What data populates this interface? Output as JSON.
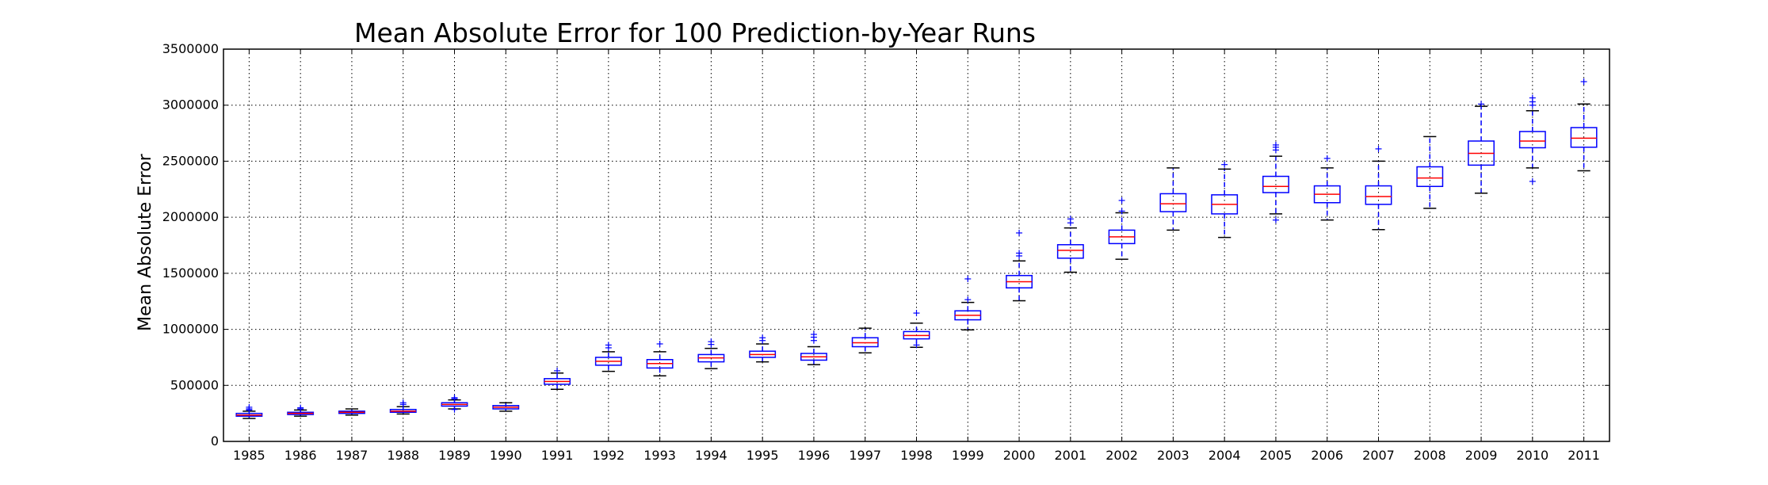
{
  "chart_data": {
    "type": "boxplot",
    "title": "Mean Absolute Error for 100 Prediction-by-Year Runs",
    "xlabel": "",
    "ylabel": "Mean Absolute Error",
    "ylim": [
      0,
      3500000
    ],
    "yticks": [
      0,
      500000,
      1000000,
      1500000,
      2000000,
      2500000,
      3000000,
      3500000
    ],
    "grid": true,
    "colors": {
      "box": "#0000ff",
      "median": "#ff0000",
      "cap": "#000000",
      "outlier": "#0000ff"
    },
    "categories": [
      "1985",
      "1986",
      "1987",
      "1988",
      "1989",
      "1990",
      "1991",
      "1992",
      "1993",
      "1994",
      "1995",
      "1996",
      "1997",
      "1998",
      "1999",
      "2000",
      "2001",
      "2002",
      "2003",
      "2004",
      "2005",
      "2006",
      "2007",
      "2008",
      "2009",
      "2010",
      "2011"
    ],
    "boxes": [
      {
        "min": 205000,
        "q1": 225000,
        "median": 235000,
        "q3": 250000,
        "max": 270000,
        "outliers": [
          280000,
          290000,
          305000
        ]
      },
      {
        "min": 225000,
        "q1": 240000,
        "median": 250000,
        "q3": 260000,
        "max": 280000,
        "outliers": [
          290000,
          300000
        ]
      },
      {
        "min": 235000,
        "q1": 250000,
        "median": 260000,
        "q3": 270000,
        "max": 290000,
        "outliers": []
      },
      {
        "min": 245000,
        "q1": 260000,
        "median": 270000,
        "q3": 285000,
        "max": 310000,
        "outliers": [
          330000,
          345000
        ]
      },
      {
        "min": 290000,
        "q1": 315000,
        "median": 330000,
        "q3": 345000,
        "max": 370000,
        "outliers": [
          285000,
          380000,
          390000
        ]
      },
      {
        "min": 270000,
        "q1": 290000,
        "median": 305000,
        "q3": 320000,
        "max": 345000,
        "outliers": []
      },
      {
        "min": 465000,
        "q1": 510000,
        "median": 535000,
        "q3": 560000,
        "max": 610000,
        "outliers": [
          630000
        ]
      },
      {
        "min": 625000,
        "q1": 680000,
        "median": 715000,
        "q3": 750000,
        "max": 800000,
        "outliers": [
          835000,
          860000
        ]
      },
      {
        "min": 585000,
        "q1": 655000,
        "median": 695000,
        "q3": 730000,
        "max": 800000,
        "outliers": [
          870000
        ]
      },
      {
        "min": 650000,
        "q1": 710000,
        "median": 745000,
        "q3": 775000,
        "max": 830000,
        "outliers": [
          865000,
          890000
        ]
      },
      {
        "min": 710000,
        "q1": 750000,
        "median": 775000,
        "q3": 805000,
        "max": 870000,
        "outliers": [
          900000,
          925000
        ]
      },
      {
        "min": 685000,
        "q1": 725000,
        "median": 755000,
        "q3": 785000,
        "max": 845000,
        "outliers": [
          900000,
          930000,
          955000
        ]
      },
      {
        "min": 790000,
        "q1": 845000,
        "median": 880000,
        "q3": 925000,
        "max": 1010000,
        "outliers": []
      },
      {
        "min": 840000,
        "q1": 915000,
        "median": 945000,
        "q3": 980000,
        "max": 1055000,
        "outliers": [
          860000,
          1145000
        ]
      },
      {
        "min": 995000,
        "q1": 1085000,
        "median": 1125000,
        "q3": 1165000,
        "max": 1240000,
        "outliers": [
          1265000,
          1450000
        ]
      },
      {
        "min": 1255000,
        "q1": 1370000,
        "median": 1425000,
        "q3": 1480000,
        "max": 1610000,
        "outliers": [
          1655000,
          1680000,
          1860000
        ]
      },
      {
        "min": 1510000,
        "q1": 1635000,
        "median": 1705000,
        "q3": 1755000,
        "max": 1905000,
        "outliers": [
          1950000,
          1985000
        ]
      },
      {
        "min": 1625000,
        "q1": 1765000,
        "median": 1825000,
        "q3": 1885000,
        "max": 2040000,
        "outliers": [
          2055000,
          2150000
        ]
      },
      {
        "min": 1885000,
        "q1": 2050000,
        "median": 2120000,
        "q3": 2210000,
        "max": 2440000,
        "outliers": []
      },
      {
        "min": 1820000,
        "q1": 2030000,
        "median": 2115000,
        "q3": 2200000,
        "max": 2430000,
        "outliers": [
          2470000
        ]
      },
      {
        "min": 2030000,
        "q1": 2220000,
        "median": 2275000,
        "q3": 2365000,
        "max": 2545000,
        "outliers": [
          1975000,
          2600000,
          2625000,
          2645000
        ]
      },
      {
        "min": 1975000,
        "q1": 2130000,
        "median": 2205000,
        "q3": 2280000,
        "max": 2440000,
        "outliers": [
          2525000
        ]
      },
      {
        "min": 1890000,
        "q1": 2115000,
        "median": 2185000,
        "q3": 2280000,
        "max": 2500000,
        "outliers": [
          2610000
        ]
      },
      {
        "min": 2080000,
        "q1": 2275000,
        "median": 2350000,
        "q3": 2450000,
        "max": 2720000,
        "outliers": []
      },
      {
        "min": 2215000,
        "q1": 2465000,
        "median": 2570000,
        "q3": 2680000,
        "max": 2990000,
        "outliers": [
          3010000
        ]
      },
      {
        "min": 2440000,
        "q1": 2620000,
        "median": 2680000,
        "q3": 2765000,
        "max": 2950000,
        "outliers": [
          2320000,
          3000000,
          3030000,
          3065000
        ]
      },
      {
        "min": 2415000,
        "q1": 2625000,
        "median": 2705000,
        "q3": 2800000,
        "max": 3010000,
        "outliers": [
          3210000
        ]
      }
    ]
  }
}
